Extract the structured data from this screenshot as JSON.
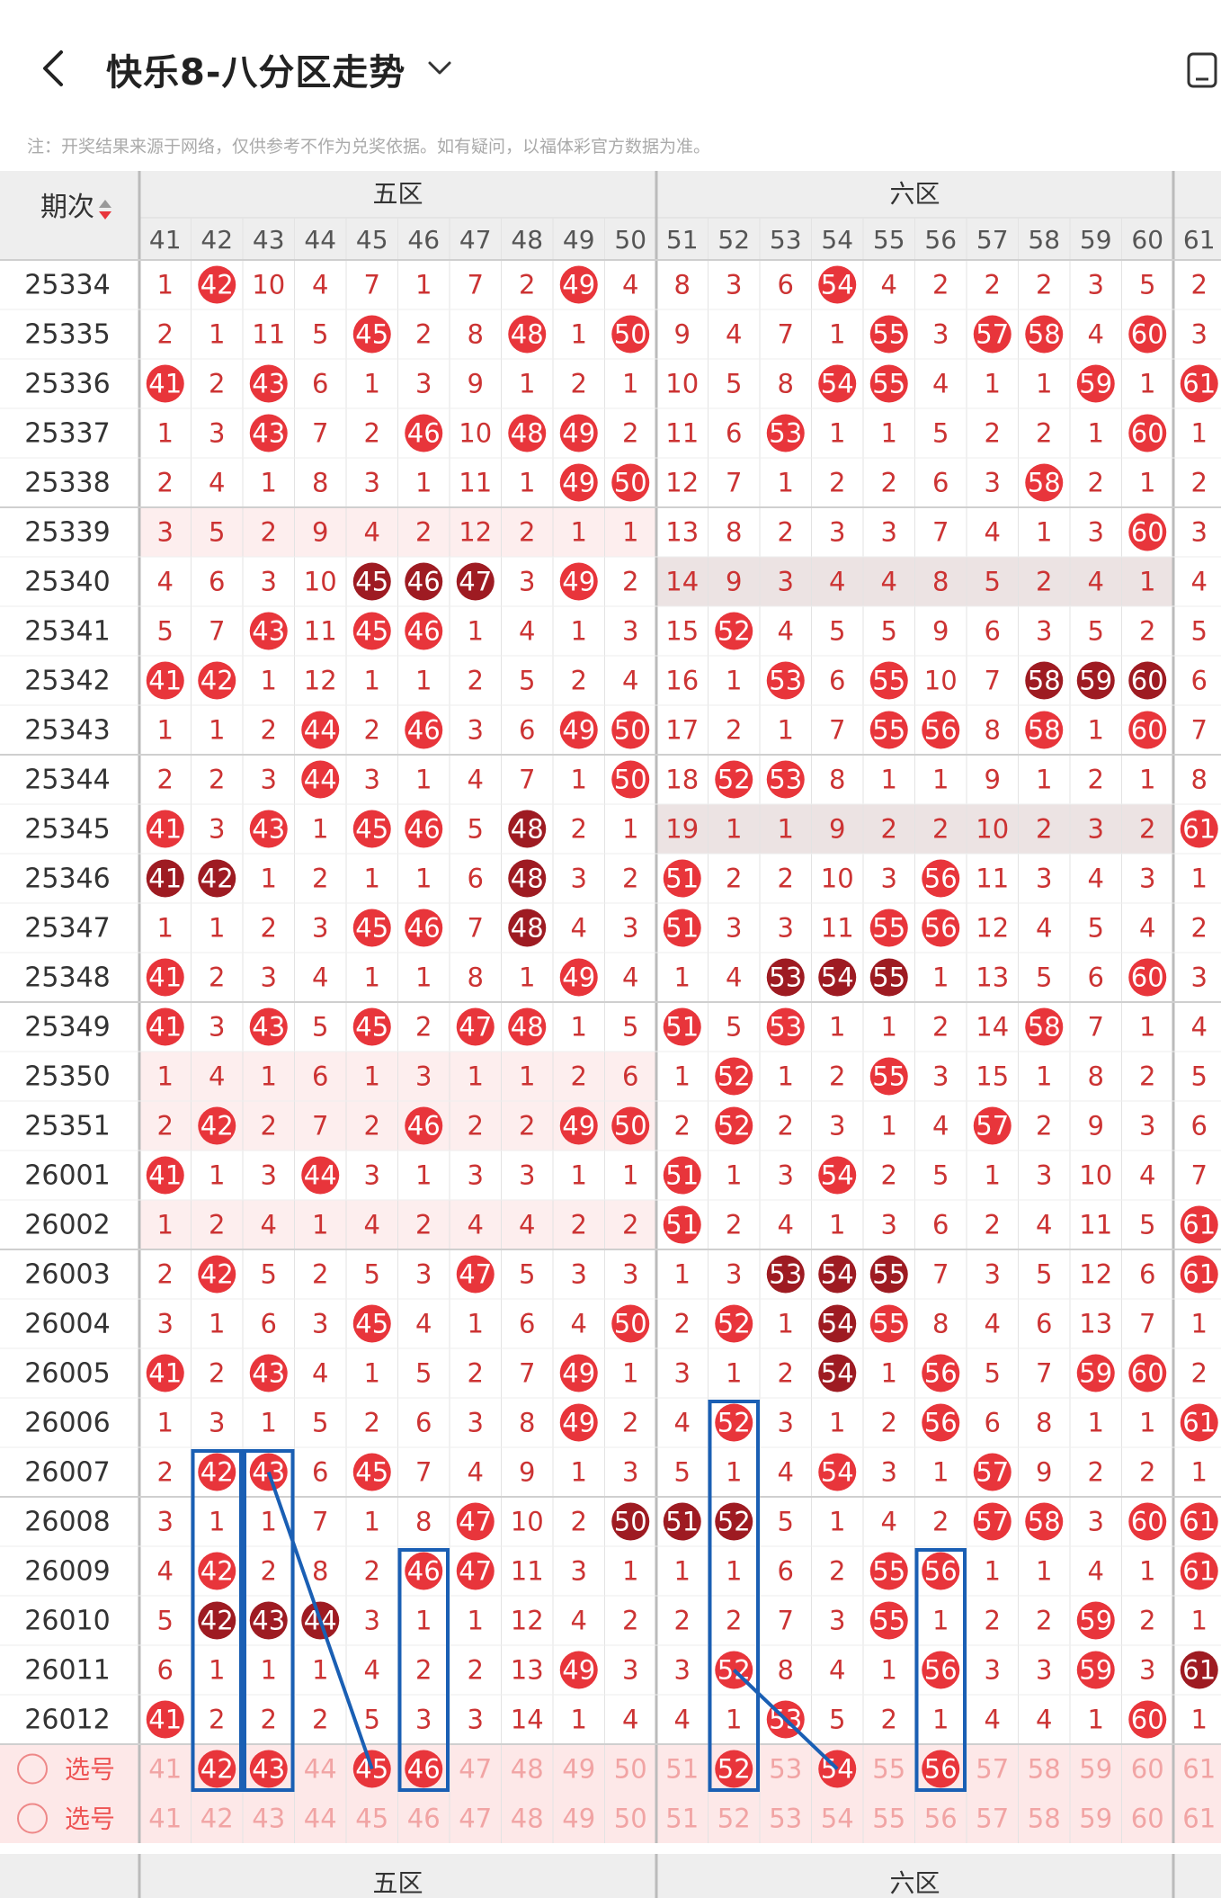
{
  "header": {
    "title": "快乐8-八分区走势",
    "back_icon": "back-arrow-icon",
    "dropdown_icon": "chevron-down-icon",
    "right_icon": "device-icon"
  },
  "notice": "注：开奖结果来源于网络，仅供参考不作为兑奖依据。如有疑问，以福体彩官方数据为准。",
  "table": {
    "period_header": "期次",
    "sort_icon": "sort-arrows-icon",
    "zones": [
      {
        "name": "五区",
        "numbers": [
          41,
          42,
          43,
          44,
          45,
          46,
          47,
          48,
          49,
          50
        ]
      },
      {
        "name": "六区",
        "numbers": [
          51,
          52,
          53,
          54,
          55,
          56,
          57,
          58,
          59,
          60
        ]
      }
    ],
    "extra_column": 61,
    "periods": [
      "25334",
      "25335",
      "25336",
      "25337",
      "25338",
      "25339",
      "25340",
      "25341",
      "25342",
      "25343",
      "25344",
      "25345",
      "25346",
      "25347",
      "25348",
      "25349",
      "25350",
      "25351",
      "26001",
      "26002",
      "26003",
      "26004",
      "26005",
      "26006",
      "26007",
      "26008",
      "26009",
      "26010",
      "26011",
      "26012"
    ],
    "rows": [
      [
        "1",
        "42",
        "10",
        "4",
        "7",
        "1",
        "7",
        "2",
        "49",
        "4",
        "8",
        "3",
        "6",
        "54",
        "4",
        "2",
        "2",
        "2",
        "3",
        "5",
        "2"
      ],
      [
        "2",
        "1",
        "11",
        "5",
        "45",
        "2",
        "8",
        "48",
        "1",
        "50",
        "9",
        "4",
        "7",
        "1",
        "55",
        "3",
        "57",
        "58",
        "4",
        "60",
        "3"
      ],
      [
        "41",
        "2",
        "43",
        "6",
        "1",
        "3",
        "9",
        "1",
        "2",
        "1",
        "10",
        "5",
        "8",
        "54",
        "55",
        "4",
        "1",
        "1",
        "59",
        "1",
        "61"
      ],
      [
        "1",
        "3",
        "43",
        "7",
        "2",
        "46",
        "10",
        "48",
        "49",
        "2",
        "11",
        "6",
        "53",
        "1",
        "1",
        "5",
        "2",
        "2",
        "1",
        "60",
        "1"
      ],
      [
        "2",
        "4",
        "1",
        "8",
        "3",
        "1",
        "11",
        "1",
        "49",
        "50",
        "12",
        "7",
        "1",
        "2",
        "2",
        "6",
        "3",
        "58",
        "2",
        "1",
        "2"
      ],
      [
        "3",
        "5",
        "2",
        "9",
        "4",
        "2",
        "12",
        "2",
        "1",
        "1",
        "13",
        "8",
        "2",
        "3",
        "3",
        "7",
        "4",
        "1",
        "3",
        "60",
        "3"
      ],
      [
        "4",
        "6",
        "3",
        "10",
        "45*",
        "46*",
        "47*",
        "3",
        "49",
        "2",
        "14",
        "9",
        "3",
        "4",
        "4",
        "8",
        "5",
        "2",
        "4",
        "1",
        "4"
      ],
      [
        "5",
        "7",
        "43",
        "11",
        "45",
        "46",
        "1",
        "4",
        "1",
        "3",
        "15",
        "52",
        "4",
        "5",
        "5",
        "9",
        "6",
        "3",
        "5",
        "2",
        "5"
      ],
      [
        "41",
        "42",
        "1",
        "12",
        "1",
        "1",
        "2",
        "5",
        "2",
        "4",
        "16",
        "1",
        "53",
        "6",
        "55",
        "10",
        "7",
        "58*",
        "59*",
        "60*",
        "6"
      ],
      [
        "1",
        "1",
        "2",
        "44",
        "2",
        "46",
        "3",
        "6",
        "49",
        "50",
        "17",
        "2",
        "1",
        "7",
        "55",
        "56",
        "8",
        "58",
        "1",
        "60",
        "7"
      ],
      [
        "2",
        "2",
        "3",
        "44",
        "3",
        "1",
        "4",
        "7",
        "1",
        "50",
        "18",
        "52",
        "53",
        "8",
        "1",
        "1",
        "9",
        "1",
        "2",
        "1",
        "8"
      ],
      [
        "41",
        "3",
        "43",
        "1",
        "45",
        "46",
        "5",
        "48*",
        "2",
        "1",
        "19",
        "1",
        "1",
        "9",
        "2",
        "2",
        "10",
        "2",
        "3",
        "2",
        "61"
      ],
      [
        "41*",
        "42*",
        "1",
        "2",
        "1",
        "1",
        "6",
        "48*",
        "3",
        "2",
        "51",
        "2",
        "2",
        "10",
        "3",
        "56",
        "11",
        "3",
        "4",
        "3",
        "1"
      ],
      [
        "1",
        "1",
        "2",
        "3",
        "45",
        "46",
        "7",
        "48*",
        "4",
        "3",
        "51",
        "3",
        "3",
        "11",
        "55",
        "56",
        "12",
        "4",
        "5",
        "4",
        "2"
      ],
      [
        "41",
        "2",
        "3",
        "4",
        "1",
        "1",
        "8",
        "1",
        "49",
        "4",
        "1",
        "4",
        "53*",
        "54*",
        "55*",
        "1",
        "13",
        "5",
        "6",
        "60",
        "3"
      ],
      [
        "41",
        "3",
        "43",
        "5",
        "45",
        "2",
        "47",
        "48",
        "1",
        "5",
        "51",
        "5",
        "53",
        "1",
        "1",
        "2",
        "14",
        "58",
        "7",
        "1",
        "4"
      ],
      [
        "1",
        "4",
        "1",
        "6",
        "1",
        "3",
        "1",
        "1",
        "2",
        "6",
        "1",
        "52",
        "1",
        "2",
        "55",
        "3",
        "15",
        "1",
        "8",
        "2",
        "5"
      ],
      [
        "2",
        "42",
        "2",
        "7",
        "2",
        "46",
        "2",
        "2",
        "49",
        "50",
        "2",
        "52",
        "2",
        "3",
        "1",
        "4",
        "57",
        "2",
        "9",
        "3",
        "6"
      ],
      [
        "41",
        "1",
        "3",
        "44",
        "3",
        "1",
        "3",
        "3",
        "1",
        "1",
        "51",
        "1",
        "3",
        "54",
        "2",
        "5",
        "1",
        "3",
        "10",
        "4",
        "7"
      ],
      [
        "1",
        "2",
        "4",
        "1",
        "4",
        "2",
        "4",
        "4",
        "2",
        "2",
        "51",
        "2",
        "4",
        "1",
        "3",
        "6",
        "2",
        "4",
        "11",
        "5",
        "61"
      ],
      [
        "2",
        "42",
        "5",
        "2",
        "5",
        "3",
        "47",
        "5",
        "3",
        "3",
        "1",
        "3",
        "53*",
        "54*",
        "55*",
        "7",
        "3",
        "5",
        "12",
        "6",
        "61"
      ],
      [
        "3",
        "1",
        "6",
        "3",
        "45",
        "4",
        "1",
        "6",
        "4",
        "50",
        "2",
        "52",
        "1",
        "54*",
        "55",
        "8",
        "4",
        "6",
        "13",
        "7",
        "1"
      ],
      [
        "41",
        "2",
        "43",
        "4",
        "1",
        "5",
        "2",
        "7",
        "49",
        "1",
        "3",
        "1",
        "2",
        "54*",
        "1",
        "56",
        "5",
        "7",
        "59",
        "60",
        "2"
      ],
      [
        "1",
        "3",
        "1",
        "5",
        "2",
        "6",
        "3",
        "8",
        "49",
        "2",
        "4",
        "52",
        "3",
        "1",
        "2",
        "56",
        "6",
        "8",
        "1",
        "1",
        "61"
      ],
      [
        "2",
        "42",
        "43",
        "6",
        "45",
        "7",
        "4",
        "9",
        "1",
        "3",
        "5",
        "1",
        "4",
        "54",
        "3",
        "1",
        "57",
        "9",
        "2",
        "2",
        "1"
      ],
      [
        "3",
        "1",
        "1",
        "7",
        "1",
        "8",
        "47",
        "10",
        "2",
        "50*",
        "51*",
        "52*",
        "5",
        "1",
        "4",
        "2",
        "57",
        "58",
        "3",
        "60",
        "61"
      ],
      [
        "4",
        "42",
        "2",
        "8",
        "2",
        "46",
        "47",
        "11",
        "3",
        "1",
        "1",
        "1",
        "6",
        "2",
        "55",
        "56",
        "1",
        "1",
        "4",
        "1",
        "61"
      ],
      [
        "5",
        "42*",
        "43*",
        "44*",
        "3",
        "1",
        "1",
        "12",
        "4",
        "2",
        "2",
        "2",
        "7",
        "3",
        "55",
        "1",
        "2",
        "2",
        "59",
        "2",
        "1"
      ],
      [
        "6",
        "1",
        "1",
        "1",
        "4",
        "2",
        "2",
        "13",
        "49",
        "3",
        "3",
        "52",
        "8",
        "4",
        "1",
        "56",
        "3",
        "3",
        "59",
        "3",
        "61*"
      ],
      [
        "41",
        "2",
        "2",
        "2",
        "5",
        "3",
        "3",
        "14",
        "1",
        "4",
        "4",
        "1",
        "53",
        "5",
        "2",
        "1",
        "4",
        "4",
        "1",
        "60",
        "1"
      ]
    ],
    "shaded_rows": [
      {
        "row": 5,
        "from": "41",
        "to": "50"
      },
      {
        "row": 6,
        "from": "51",
        "to": "60"
      },
      {
        "row": 11,
        "from": "51",
        "to": "60"
      },
      {
        "row": 16,
        "from": "41",
        "to": "50"
      },
      {
        "row": 17,
        "from": "41",
        "to": "50"
      },
      {
        "row": 19,
        "from": "41",
        "to": "50"
      }
    ],
    "select_rows": [
      {
        "label": "选号",
        "highlighted": [
          "42",
          "43",
          "45",
          "46",
          "52",
          "54",
          "56"
        ]
      },
      {
        "label": "选号",
        "highlighted": []
      }
    ],
    "footer_zones": [
      "五区",
      "六区"
    ],
    "footer_dash": "-",
    "colors": {
      "ball_red": "#e8353b",
      "ball_dark": "#9e1b22",
      "digit": "#cc3333",
      "annotation_blue": "#1a5fb4",
      "shade_pink": "#fdeeee",
      "shade_grey": "#ece3e3",
      "select_bg": "#fde8e8",
      "header_bg": "#eeeeee"
    }
  }
}
